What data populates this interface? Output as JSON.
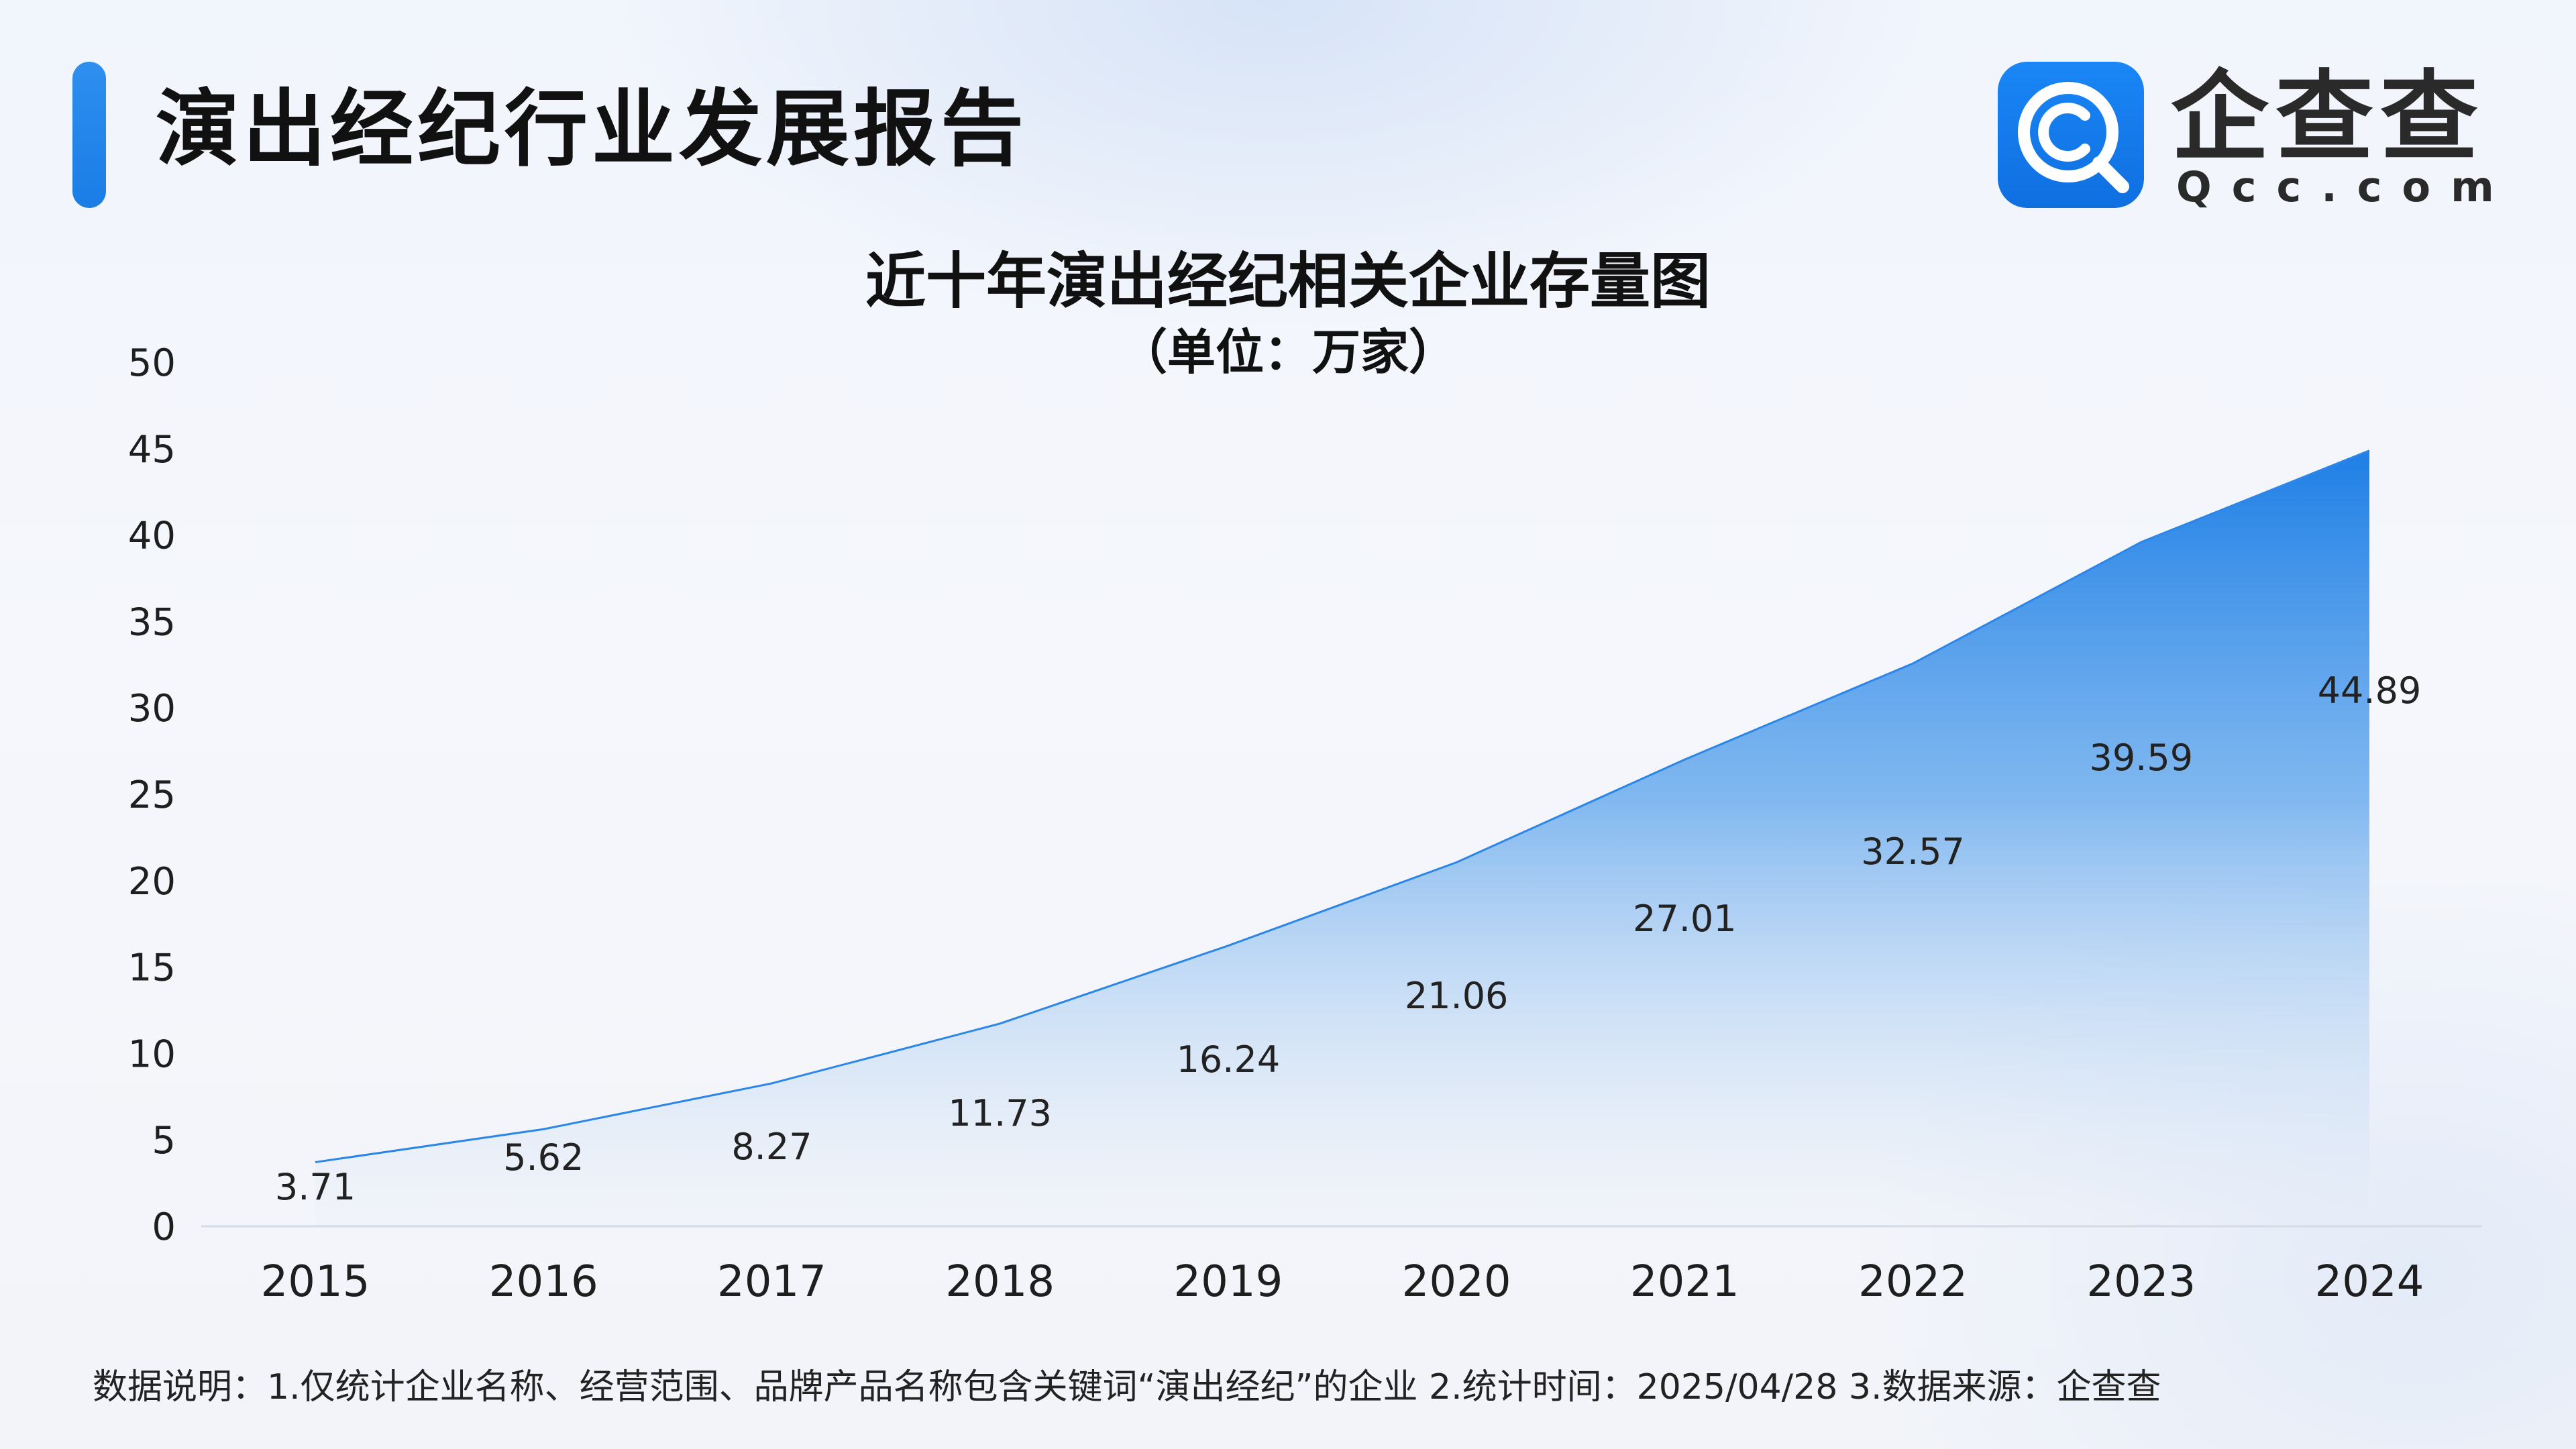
{
  "header": {
    "title": "演出经纪行业发展报告"
  },
  "logo": {
    "name": "企查查",
    "url": "Qcc.com",
    "icon": "qcc-search-icon",
    "color": "#1677f2"
  },
  "chart_data": {
    "type": "area",
    "title": "近十年演出经纪相关企业存量图",
    "subtitle": "（单位：万家）",
    "categories": [
      "2015",
      "2016",
      "2017",
      "2018",
      "2019",
      "2020",
      "2021",
      "2022",
      "2023",
      "2024"
    ],
    "values": [
      3.71,
      5.62,
      8.27,
      11.73,
      16.24,
      21.06,
      27.01,
      32.57,
      39.59,
      44.89
    ],
    "data_labels": [
      "3.71",
      "5.62",
      "8.27",
      "11.73",
      "16.24",
      "21.06",
      "27.01",
      "32.57",
      "39.59",
      "44.89"
    ],
    "y_ticks": [
      "0",
      "5",
      "10",
      "15",
      "20",
      "25",
      "30",
      "35",
      "40",
      "45",
      "50"
    ],
    "ylim": [
      0,
      50
    ],
    "grid": false,
    "legend": "none",
    "area_color": "#1e7fe6"
  },
  "footer": {
    "note": "数据说明：1.仅统计企业名称、经营范围、品牌产品名称包含关键词“演出经纪”的企业   2.统计时间：2025/04/28    3.数据来源：企查查"
  }
}
